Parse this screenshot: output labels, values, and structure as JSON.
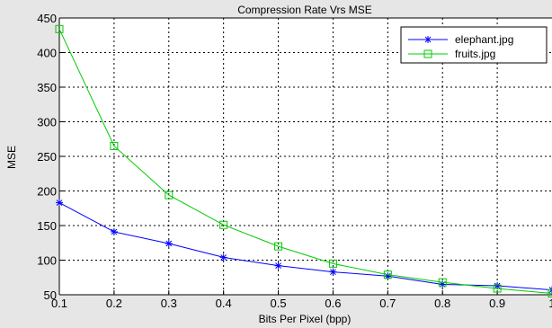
{
  "chart_data": {
    "type": "line",
    "title": "Compression Rate Vrs MSE",
    "xlabel": "Bits Per Pixel (bpp)",
    "ylabel": "MSE",
    "xlim": [
      0.1,
      1.0
    ],
    "ylim": [
      50,
      450
    ],
    "x": [
      0.1,
      0.2,
      0.3,
      0.4,
      0.5,
      0.6,
      0.7,
      0.8,
      0.9,
      1.0
    ],
    "xticks": [
      "0.1",
      "0.2",
      "0.3",
      "0.4",
      "0.5",
      "0.6",
      "0.7",
      "0.8",
      "0.9",
      "1"
    ],
    "yticks": [
      "50",
      "100",
      "150",
      "200",
      "250",
      "300",
      "350",
      "400",
      "450"
    ],
    "grid": true,
    "legend_position": "top-right",
    "series": [
      {
        "name": "elephant.jpg",
        "color": "#0000ff",
        "marker": "asterisk",
        "values": [
          183,
          141,
          124,
          104,
          92,
          83,
          77,
          65,
          63,
          57
        ]
      },
      {
        "name": "fruits.jpg",
        "color": "#00cc00",
        "marker": "square",
        "values": [
          434,
          265,
          194,
          151,
          120,
          95,
          79,
          68,
          59,
          52
        ]
      }
    ]
  }
}
